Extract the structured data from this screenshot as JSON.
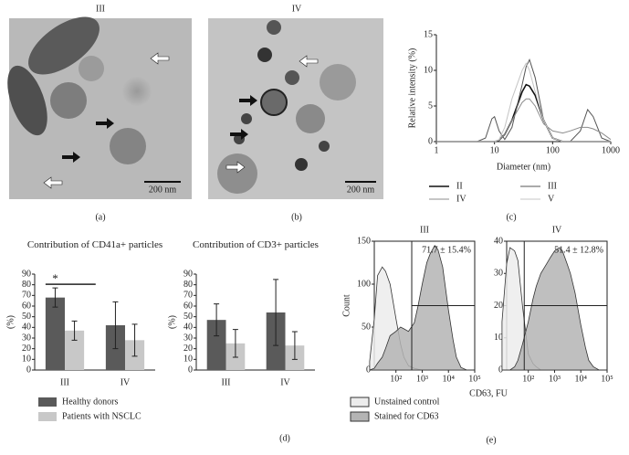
{
  "images": [
    {
      "title": "III",
      "scale_bar": "200 nm",
      "caption": "(a)"
    },
    {
      "title": "IV",
      "scale_bar": "200 nm",
      "caption": "(b)"
    }
  ],
  "captions": {
    "c": "(c)",
    "d": "(d)",
    "e": "(e)"
  },
  "chart_data": [
    {
      "type": "line",
      "xlabel": "Diameter (nm)",
      "ylabel": "Relative intensity (%)",
      "xlog": true,
      "x": [
        1,
        2,
        5,
        7,
        9,
        10,
        12,
        15,
        20,
        30,
        35,
        40,
        50,
        70,
        100,
        150,
        200,
        300,
        400,
        500,
        700,
        1000
      ],
      "xlim": [
        1,
        1000
      ],
      "xticks": [
        1,
        10,
        100,
        1000
      ],
      "ylim": [
        0,
        15
      ],
      "yticks": [
        0,
        5,
        10,
        15
      ],
      "series": [
        {
          "name": "II",
          "color": "#111111",
          "values": [
            0,
            0,
            0,
            0,
            0,
            0,
            0.2,
            1,
            3,
            7,
            8,
            7.8,
            6.5,
            3,
            0.5,
            0,
            0,
            0,
            0,
            0,
            0,
            0
          ]
        },
        {
          "name": "III",
          "color": "#555555",
          "values": [
            0,
            0,
            0,
            0.5,
            3.2,
            3.5,
            1.5,
            0.3,
            2,
            8,
            10.5,
            11.5,
            9,
            3,
            0.5,
            0,
            0,
            1.5,
            4.5,
            3.5,
            0.5,
            0
          ]
        },
        {
          "name": "IV",
          "color": "#8c8c8c",
          "values": [
            0,
            0,
            0,
            0,
            0,
            0,
            0.2,
            1,
            3,
            5.5,
            6,
            6,
            5,
            2.5,
            1.5,
            1.2,
            1.5,
            2,
            2,
            1.8,
            1.2,
            0.3
          ]
        },
        {
          "name": "V",
          "color": "#c4c4c4",
          "values": [
            0,
            0,
            0,
            0,
            0,
            0,
            0.3,
            2,
            6,
            10,
            11,
            10,
            7,
            3,
            0.5,
            0,
            0,
            0,
            0,
            0,
            0,
            0
          ]
        }
      ]
    },
    {
      "type": "bar",
      "title": "Contribution of CD41a+ particles",
      "ylabel": "(%)",
      "annotation": "*",
      "categories": [
        "III",
        "IV"
      ],
      "ylim": [
        0,
        90
      ],
      "yticks": [
        0,
        10,
        20,
        30,
        40,
        50,
        60,
        70,
        80,
        90
      ],
      "series": [
        {
          "name": "Healthy donors",
          "color": "#5a5a5a",
          "values": [
            68,
            42
          ],
          "errors": [
            9,
            22
          ]
        },
        {
          "name": "Patients with NSCLC",
          "color": "#c8c8c8",
          "values": [
            37,
            28
          ],
          "errors": [
            9,
            15
          ]
        }
      ]
    },
    {
      "type": "bar",
      "title": "Contribution of CD3+ particles",
      "ylabel": "(%)",
      "categories": [
        "III",
        "IV"
      ],
      "ylim": [
        0,
        90
      ],
      "yticks": [
        0,
        10,
        20,
        30,
        40,
        50,
        60,
        70,
        80,
        90
      ],
      "series": [
        {
          "color": "#5a5a5a",
          "values": [
            47,
            54
          ],
          "errors": [
            15,
            31
          ]
        },
        {
          "color": "#c8c8c8",
          "values": [
            25,
            23
          ],
          "errors": [
            13,
            13
          ]
        }
      ]
    },
    {
      "type": "hist",
      "title": "III",
      "annotation": "71.7 ± 15.4%",
      "ylabel": "Count",
      "xlabel": "CD63, FU",
      "xlog": true,
      "x": [
        10,
        15,
        20,
        30,
        40,
        60,
        100,
        150,
        200,
        300,
        500,
        700,
        1000,
        1500,
        2000,
        3000,
        4000,
        6000,
        10000,
        15000,
        20000,
        30000,
        50000,
        100000
      ],
      "xlim": [
        15,
        100000
      ],
      "xticks": [
        {
          "value": 100,
          "label": "10²"
        },
        {
          "value": 1000,
          "label": "10³"
        },
        {
          "value": 10000,
          "label": "10⁴"
        },
        {
          "value": 100000,
          "label": "10⁵"
        }
      ],
      "ylim": [
        0,
        150
      ],
      "yticks": [
        0,
        50,
        100,
        150
      ],
      "gate": {
        "x": 400,
        "y": 75
      },
      "series": [
        {
          "name": "Unstained control",
          "color": "#ececec",
          "values": [
            10,
            60,
            110,
            120,
            115,
            100,
            60,
            30,
            15,
            5,
            2,
            1,
            0,
            0,
            0,
            0,
            0,
            0,
            0,
            0,
            0,
            0,
            0,
            0
          ]
        },
        {
          "name": "Stained for CD63",
          "color": "#b4b4b4",
          "values": [
            0,
            2,
            8,
            15,
            25,
            40,
            45,
            50,
            48,
            45,
            55,
            75,
            100,
            125,
            135,
            145,
            140,
            120,
            70,
            35,
            15,
            3,
            0,
            0
          ]
        }
      ]
    },
    {
      "type": "hist",
      "title": "IV",
      "annotation": "51.4 ± 12.8%",
      "xlog": true,
      "x": [
        10,
        15,
        20,
        30,
        40,
        60,
        100,
        150,
        200,
        300,
        500,
        700,
        1000,
        1500,
        2000,
        3000,
        4000,
        6000,
        10000,
        15000,
        20000,
        30000,
        50000,
        100000
      ],
      "xlim": [
        15,
        100000
      ],
      "xticks": [
        {
          "value": 100,
          "label": "10²"
        },
        {
          "value": 1000,
          "label": "10³"
        },
        {
          "value": 10000,
          "label": "10⁴"
        },
        {
          "value": 100000,
          "label": "10⁵"
        }
      ],
      "ylim": [
        0,
        40
      ],
      "yticks": [
        0,
        10,
        20,
        30,
        40
      ],
      "gate": {
        "x": 70,
        "y": 20
      },
      "series": [
        {
          "color": "#ececec",
          "values": [
            15,
            33,
            38,
            37,
            34,
            20,
            5,
            2,
            1,
            0,
            0,
            0,
            0,
            0,
            0,
            0,
            0,
            0,
            0,
            0,
            0,
            0,
            0,
            0
          ]
        },
        {
          "color": "#b4b4b4",
          "values": [
            0,
            0,
            0,
            1,
            3,
            8,
            15,
            22,
            26,
            30,
            33,
            35,
            37,
            38,
            37,
            33,
            30,
            24,
            14,
            7,
            3,
            1,
            0,
            0
          ]
        }
      ]
    }
  ]
}
